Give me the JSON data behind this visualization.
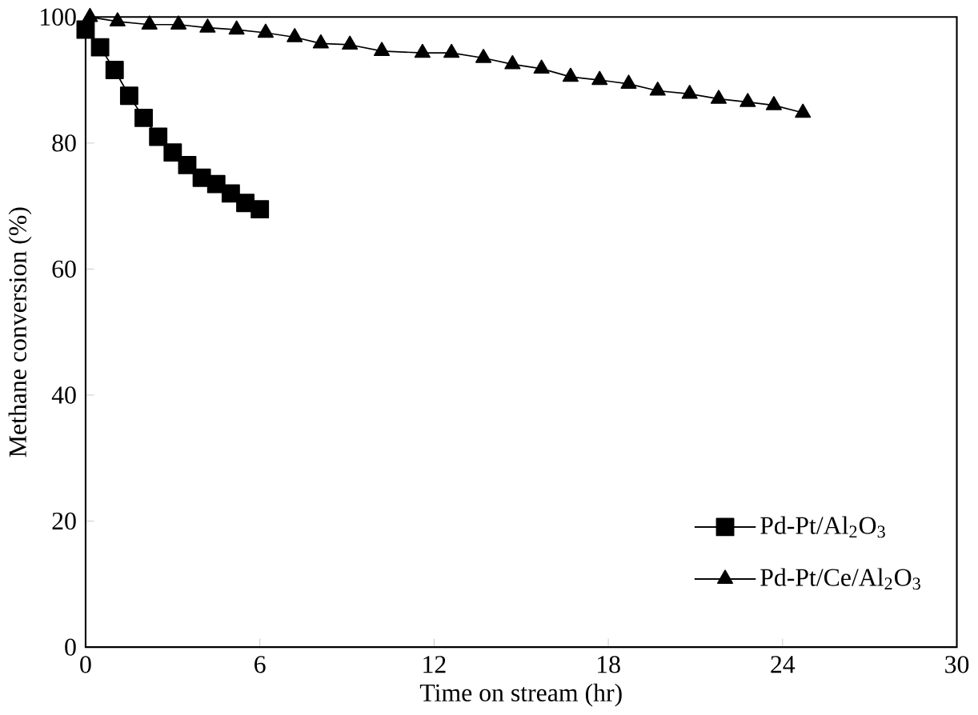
{
  "chart_data": {
    "type": "line",
    "xlabel": "Time on stream (hr)",
    "ylabel": "Methane conversion (%)",
    "xlim": [
      0,
      30
    ],
    "ylim": [
      0,
      100
    ],
    "xticks": [
      0,
      6,
      12,
      18,
      24,
      30
    ],
    "yticks": [
      0,
      20,
      40,
      60,
      80,
      100
    ],
    "grid": false,
    "legend": "bottom right",
    "line_style": "solid",
    "series": [
      {
        "name": "Pd-Pt/Al$_{2}$O$_{3}$",
        "color": "#000000",
        "marker": "square",
        "x": [
          0,
          0.5,
          1,
          1.5,
          2,
          2.5,
          3,
          3.5,
          4,
          4.5,
          5,
          5.5,
          6
        ],
        "values": [
          98,
          95.2,
          91.6,
          87.5,
          84,
          81,
          78.5,
          76.5,
          74.5,
          73.5,
          72,
          70.5,
          69.5
        ]
      },
      {
        "name": "Pd-Pt/Ce/Al$_{2}$O$_{3}$",
        "color": "#000000",
        "marker": "triangle",
        "x": [
          0.15,
          1.1,
          2.2,
          3.2,
          4.2,
          5.2,
          6.2,
          7.2,
          8.1,
          9.1,
          10.2,
          11.6,
          12.6,
          13.7,
          14.7,
          15.7,
          16.7,
          17.7,
          18.7,
          19.7,
          20.8,
          21.8,
          22.8,
          23.7,
          24.7
        ],
        "values": [
          100,
          99.3,
          98.8,
          98.8,
          98.3,
          98,
          97.5,
          96.8,
          95.8,
          95.6,
          94.6,
          94.3,
          94.3,
          93.5,
          92.5,
          91.8,
          90.5,
          90,
          89.4,
          88.3,
          87.8,
          87,
          86.5,
          86,
          84.8
        ]
      }
    ]
  }
}
